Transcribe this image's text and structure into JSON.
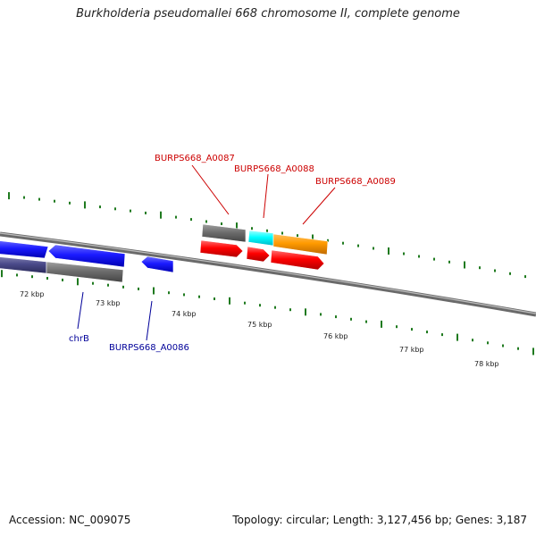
{
  "title": "Burkholderia pseudomallei 668 chromosome II, complete genome",
  "footer": {
    "accession": "Accession: NC_009075",
    "summary": "Topology: circular; Length: 3,127,456 bp; Genes: 3,187"
  },
  "colors": {
    "backbone": "#7a7a7a",
    "tick": "#1f7a1f",
    "forward_gene": "#1a1aff",
    "reverse_gene_label": "#000099",
    "red_gene": "#ff0000",
    "red_gene_label": "#cc0000",
    "cyan_gene": "#00ffff",
    "orange_gene": "#ff9a00",
    "gray_gene": "#6e6e6e",
    "dark_gene": "#4a4a8a"
  },
  "scale": {
    "labels": [
      "72 kbp",
      "73 kbp",
      "74 kbp",
      "75 kbp",
      "76 kbp",
      "77 kbp",
      "78 kbp"
    ]
  },
  "genes": [
    {
      "label": "chrB",
      "label_color": "#000099"
    },
    {
      "label": "BURPS668_A0086",
      "label_color": "#000099"
    },
    {
      "label": "BURPS668_A0087",
      "label_color": "#cc0000"
    },
    {
      "label": "BURPS668_A0088",
      "label_color": "#cc0000"
    },
    {
      "label": "BURPS668_A0089",
      "label_color": "#cc0000"
    }
  ]
}
